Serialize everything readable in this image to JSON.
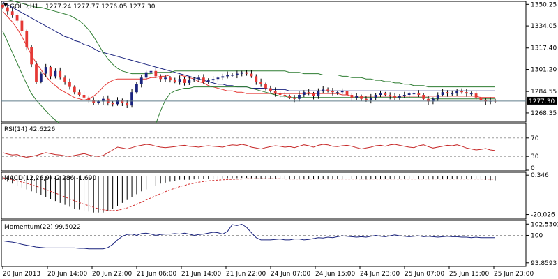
{
  "chart_data": [
    {
      "type": "candlestick",
      "title": "GOLD,H1",
      "ohlc_label": "1277.24 1277.77 1276.05 1277.30",
      "last_price": 1277.3,
      "last_price_label": "1277.30",
      "ylim": [
        1262,
        1352
      ],
      "y_ticks": [
        1350.25,
        1334.05,
        1317.4,
        1301.2,
        1284.55,
        1268.35
      ],
      "y_tick_labels": [
        "1350.25",
        "1334.05",
        "1317.40",
        "1301.20",
        "1284.55",
        "1268.35"
      ],
      "x_tick_labels": [
        "20 Jun 2013",
        "20 Jun 14:00",
        "20 Jun 22:00",
        "21 Jun 06:00",
        "21 Jun 14:00",
        "21 Jun 22:00",
        "24 Jun 07:00",
        "24 Jun 15:00",
        "24 Jun 23:00",
        "25 Jun 07:00",
        "25 Jun 15:00",
        "25 Jun 23:00"
      ],
      "bull_color": "#1a237e",
      "bear_color": "#e53935",
      "close": [
        1348,
        1345,
        1342,
        1338,
        1330,
        1318,
        1305,
        1292,
        1298,
        1303,
        1296,
        1300,
        1295,
        1292,
        1288,
        1284,
        1282,
        1280,
        1278,
        1276,
        1277,
        1279,
        1276,
        1275,
        1278,
        1276,
        1274,
        1284,
        1290,
        1295,
        1299,
        1300,
        1296,
        1294,
        1295,
        1293,
        1292,
        1294,
        1291,
        1293,
        1294,
        1295,
        1292,
        1293,
        1294,
        1295,
        1296,
        1297,
        1297,
        1298,
        1299,
        1298,
        1296,
        1292,
        1290,
        1287,
        1285,
        1283,
        1282,
        1281,
        1280,
        1279,
        1282,
        1284,
        1283,
        1281,
        1285,
        1286,
        1285,
        1284,
        1284,
        1285,
        1282,
        1280,
        1281,
        1279,
        1278,
        1280,
        1282,
        1283,
        1282,
        1281,
        1280,
        1281,
        1282,
        1283,
        1283,
        1282,
        1279,
        1277,
        1279,
        1282,
        1284,
        1283,
        1283,
        1285,
        1284,
        1283,
        1283,
        1280,
        1278,
        1277,
        1277.5,
        1277.3
      ],
      "indicators": [
        {
          "name": "ma-fast",
          "color": "#e53935",
          "values": [
            1345,
            1341,
            1337,
            1332,
            1326,
            1319,
            1312,
            1306,
            1301,
            1296,
            1292,
            1289,
            1286,
            1284,
            1282,
            1280,
            1279,
            1278,
            1279,
            1281,
            1284,
            1288,
            1291,
            1293,
            1294,
            1294,
            1294,
            1294,
            1294,
            1294,
            1294,
            1295,
            1295,
            1296,
            1296,
            1297,
            1297,
            1297,
            1296,
            1295,
            1294,
            1292,
            1291,
            1289,
            1288,
            1287,
            1286,
            1285,
            1285,
            1284,
            1284,
            1283,
            1283,
            1283,
            1283,
            1283,
            1283,
            1283,
            1283,
            1283,
            1283,
            1283,
            1283,
            1283,
            1283,
            1283,
            1283,
            1283,
            1283,
            1283,
            1283,
            1282,
            1282,
            1281,
            1281,
            1281,
            1281,
            1281,
            1281,
            1281,
            1281,
            1281,
            1281,
            1281,
            1281,
            1281,
            1281,
            1281,
            1281,
            1281,
            1281,
            1281,
            1281,
            1281,
            1281,
            1281,
            1281,
            1281,
            1281,
            1281,
            1280,
            1280,
            1280,
            1280
          ]
        },
        {
          "name": "ma-slow",
          "color": "#1a237e",
          "values": [
            1352,
            1350,
            1348,
            1346,
            1344,
            1342,
            1340,
            1338,
            1336,
            1334,
            1332,
            1330,
            1328,
            1326,
            1325,
            1323,
            1322,
            1320,
            1319,
            1317,
            1315,
            1314,
            1313,
            1312,
            1311,
            1310,
            1309,
            1308,
            1307,
            1306,
            1305,
            1304,
            1303,
            1302,
            1301,
            1300,
            1299,
            1298,
            1297,
            1296,
            1295,
            1294,
            1293,
            1292,
            1291,
            1290,
            1290,
            1289,
            1289,
            1288,
            1288,
            1288,
            1287,
            1287,
            1287,
            1287,
            1286,
            1286,
            1286,
            1286,
            1285,
            1285,
            1285,
            1285,
            1285,
            1285,
            1285,
            1285,
            1285,
            1285,
            1285,
            1285,
            1285,
            1285,
            1285,
            1285,
            1285,
            1285,
            1285,
            1285,
            1285,
            1285,
            1285,
            1285,
            1285,
            1285,
            1285,
            1285,
            1285,
            1285,
            1285,
            1285,
            1285,
            1285,
            1285,
            1285,
            1285,
            1285,
            1285,
            1285,
            1285,
            1285,
            1285,
            1285
          ]
        },
        {
          "name": "bb-upper",
          "color": "#2e7d32",
          "values": [
            1355,
            1354,
            1353,
            1352,
            1351,
            1350,
            1349,
            1348,
            1348,
            1347,
            1346,
            1345,
            1344,
            1343,
            1342,
            1340,
            1338,
            1335,
            1331,
            1326,
            1320,
            1314,
            1309,
            1305,
            1302,
            1300,
            1299,
            1298,
            1298,
            1298,
            1298,
            1298,
            1299,
            1299,
            1299,
            1299,
            1300,
            1300,
            1300,
            1300,
            1300,
            1300,
            1300,
            1300,
            1300,
            1300,
            1300,
            1300,
            1300,
            1300,
            1300,
            1300,
            1300,
            1300,
            1300,
            1300,
            1300,
            1300,
            1300,
            1300,
            1299,
            1299,
            1299,
            1298,
            1298,
            1298,
            1298,
            1297,
            1297,
            1297,
            1297,
            1296,
            1296,
            1295,
            1295,
            1295,
            1294,
            1294,
            1293,
            1293,
            1292,
            1292,
            1291,
            1291,
            1290,
            1290,
            1289,
            1289,
            1289,
            1288,
            1288,
            1288,
            1288,
            1288,
            1288,
            1288,
            1288,
            1288,
            1288,
            1288,
            1288,
            1288,
            1288,
            1288
          ]
        },
        {
          "name": "bb-lower",
          "color": "#2e7d32",
          "values": [
            1330,
            1322,
            1314,
            1306,
            1298,
            1290,
            1283,
            1278,
            1274,
            1270,
            1266,
            1263,
            1260,
            1258,
            1256,
            1254,
            1253,
            1252,
            1252,
            1252,
            1252,
            1252,
            1252,
            1252,
            1252,
            1252,
            1252,
            1252,
            1252,
            1252,
            1252,
            1252,
            1260,
            1270,
            1278,
            1283,
            1285,
            1286,
            1287,
            1287,
            1288,
            1288,
            1288,
            1288,
            1288,
            1288,
            1288,
            1288,
            1288,
            1288,
            1288,
            1288,
            1287,
            1286,
            1285,
            1284,
            1283,
            1282,
            1281,
            1281,
            1280,
            1280,
            1280,
            1280,
            1280,
            1280,
            1280,
            1280,
            1280,
            1280,
            1280,
            1280,
            1280,
            1280,
            1280,
            1280,
            1280,
            1280,
            1280,
            1280,
            1280,
            1280,
            1280,
            1280,
            1280,
            1280,
            1280,
            1280,
            1280,
            1280,
            1279,
            1279,
            1279,
            1279,
            1279,
            1279,
            1279,
            1279,
            1279,
            1279,
            1279,
            1279,
            1279,
            1279
          ]
        }
      ]
    },
    {
      "type": "line",
      "title": "RSI(14) 42.6226",
      "ylim": [
        0,
        100
      ],
      "y_ticks": [
        70,
        30,
        0
      ],
      "y_tick_labels": [
        "70",
        "30",
        "0"
      ],
      "levels": [
        70,
        30
      ],
      "color": "#c62828",
      "values": [
        38,
        35,
        33,
        34,
        30,
        28,
        30,
        32,
        35,
        38,
        36,
        34,
        33,
        31,
        30,
        32,
        34,
        36,
        33,
        31,
        30,
        32,
        38,
        44,
        50,
        48,
        46,
        49,
        52,
        54,
        56,
        55,
        52,
        50,
        49,
        50,
        51,
        53,
        54,
        52,
        51,
        50,
        52,
        53,
        52,
        51,
        50,
        53,
        55,
        54,
        56,
        54,
        50,
        48,
        46,
        49,
        51,
        53,
        52,
        50,
        51,
        49,
        52,
        55,
        53,
        50,
        54,
        56,
        55,
        52,
        51,
        53,
        54,
        52,
        49,
        46,
        48,
        50,
        53,
        54,
        52,
        55,
        56,
        54,
        52,
        50,
        49,
        53,
        55,
        51,
        48,
        50,
        52,
        54,
        53,
        55,
        52,
        48,
        46,
        44,
        45,
        47,
        44,
        42.6
      ]
    },
    {
      "type": "histogram",
      "title": "MACD(12,26,9) -2.286 -1.690",
      "ylim": [
        -22,
        1.5
      ],
      "y_ticks": [
        0.346,
        -20.026
      ],
      "y_tick_labels": [
        "0.346",
        "-20.026"
      ],
      "values": [
        -2,
        -3,
        -4,
        -5,
        -6,
        -7,
        -8,
        -9,
        -10,
        -11,
        -12,
        -13,
        -14,
        -15,
        -16,
        -17,
        -17.5,
        -18,
        -18.5,
        -19,
        -19,
        -19,
        -18,
        -17,
        -15.5,
        -14,
        -12.5,
        -11,
        -9.5,
        -8,
        -7,
        -6,
        -5,
        -4,
        -3.5,
        -3,
        -2.5,
        -2,
        -2,
        -2,
        -1.8,
        -1.5,
        -1.5,
        -1.5,
        -1.5,
        -1.4,
        -1.3,
        -1.2,
        -1.2,
        -1.2,
        -1.1,
        -1.1,
        -1.2,
        -1.3,
        -1.4,
        -1.5,
        -1.5,
        -1.6,
        -1.7,
        -1.7,
        -1.8,
        -1.8,
        -1.8,
        -1.7,
        -1.6,
        -1.6,
        -1.5,
        -1.5,
        -1.6,
        -1.6,
        -1.6,
        -1.5,
        -1.6,
        -1.7,
        -1.7,
        -1.8,
        -1.9,
        -1.8,
        -1.7,
        -1.6,
        -1.5,
        -1.5,
        -1.6,
        -1.6,
        -1.5,
        -1.5,
        -1.5,
        -1.6,
        -1.7,
        -1.8,
        -1.8,
        -1.7,
        -1.6,
        -1.6,
        -1.5,
        -1.4,
        -1.4,
        -1.5,
        -1.6,
        -1.8,
        -2,
        -2.1,
        -2.2,
        -2.286
      ],
      "signal": [
        -1,
        -1.5,
        -2,
        -2.6,
        -3.2,
        -3.9,
        -4.6,
        -5.4,
        -6.2,
        -7.1,
        -8,
        -8.9,
        -9.9,
        -10.9,
        -11.9,
        -12.9,
        -13.8,
        -14.7,
        -15.5,
        -16.3,
        -17,
        -17.6,
        -17.9,
        -18,
        -17.8,
        -17.3,
        -16.6,
        -15.7,
        -14.7,
        -13.6,
        -12.5,
        -11.4,
        -10.3,
        -9.2,
        -8.2,
        -7.3,
        -6.4,
        -5.6,
        -4.9,
        -4.3,
        -3.8,
        -3.3,
        -2.9,
        -2.6,
        -2.4,
        -2.2,
        -2,
        -1.9,
        -1.8,
        -1.7,
        -1.6,
        -1.5,
        -1.5,
        -1.5,
        -1.5,
        -1.5,
        -1.5,
        -1.5,
        -1.5,
        -1.6,
        -1.6,
        -1.6,
        -1.6,
        -1.6,
        -1.6,
        -1.6,
        -1.6,
        -1.6,
        -1.6,
        -1.6,
        -1.6,
        -1.6,
        -1.6,
        -1.6,
        -1.6,
        -1.6,
        -1.6,
        -1.6,
        -1.6,
        -1.6,
        -1.6,
        -1.6,
        -1.6,
        -1.6,
        -1.6,
        -1.6,
        -1.6,
        -1.6,
        -1.6,
        -1.6,
        -1.6,
        -1.6,
        -1.6,
        -1.6,
        -1.6,
        -1.6,
        -1.6,
        -1.6,
        -1.6,
        -1.6,
        -1.6,
        -1.65,
        -1.67,
        -1.69
      ],
      "color": "#000000",
      "signal_color": "#d32f2f"
    },
    {
      "type": "line",
      "title": "Momentum(22) 99.5022",
      "ylim": [
        93.2,
        103.2
      ],
      "y_ticks": [
        102.5301,
        100,
        93.8593
      ],
      "y_tick_labels": [
        "102.5301",
        "100",
        "93.8593"
      ],
      "levels": [
        100
      ],
      "color": "#1a237e",
      "values": [
        98.8,
        98.6,
        98.5,
        98.3,
        98.0,
        97.8,
        97.6,
        97.4,
        97.3,
        97.2,
        97.2,
        97.2,
        97.2,
        97.2,
        97.2,
        97.2,
        97.1,
        97.1,
        97.0,
        97.0,
        97.0,
        97.0,
        97.3,
        98.0,
        99.0,
        99.8,
        100.2,
        100.3,
        100.0,
        100.4,
        100.5,
        100.3,
        100.0,
        100.2,
        100.3,
        100.3,
        100.4,
        100.3,
        100.5,
        100.3,
        100.0,
        100.2,
        100.3,
        100.5,
        100.7,
        100.6,
        100.3,
        100.9,
        102.4,
        102.2,
        102.5,
        101.8,
        100.6,
        99.5,
        99.0,
        99.0,
        99.0,
        99.1,
        99.2,
        99.0,
        99.0,
        99.2,
        99.2,
        99.0,
        99.1,
        99.3,
        99.5,
        99.4,
        99.6,
        99.5,
        99.7,
        99.9,
        99.8,
        99.7,
        99.6,
        99.7,
        99.6,
        99.8,
        100.0,
        99.8,
        99.7,
        99.9,
        100.1,
        99.9,
        99.8,
        99.7,
        99.8,
        99.9,
        99.7,
        99.8,
        99.7,
        99.6,
        99.7,
        99.8,
        99.7,
        99.7,
        99.6,
        99.6,
        99.5,
        99.6,
        99.5,
        99.5,
        99.5,
        99.5
      ]
    }
  ]
}
